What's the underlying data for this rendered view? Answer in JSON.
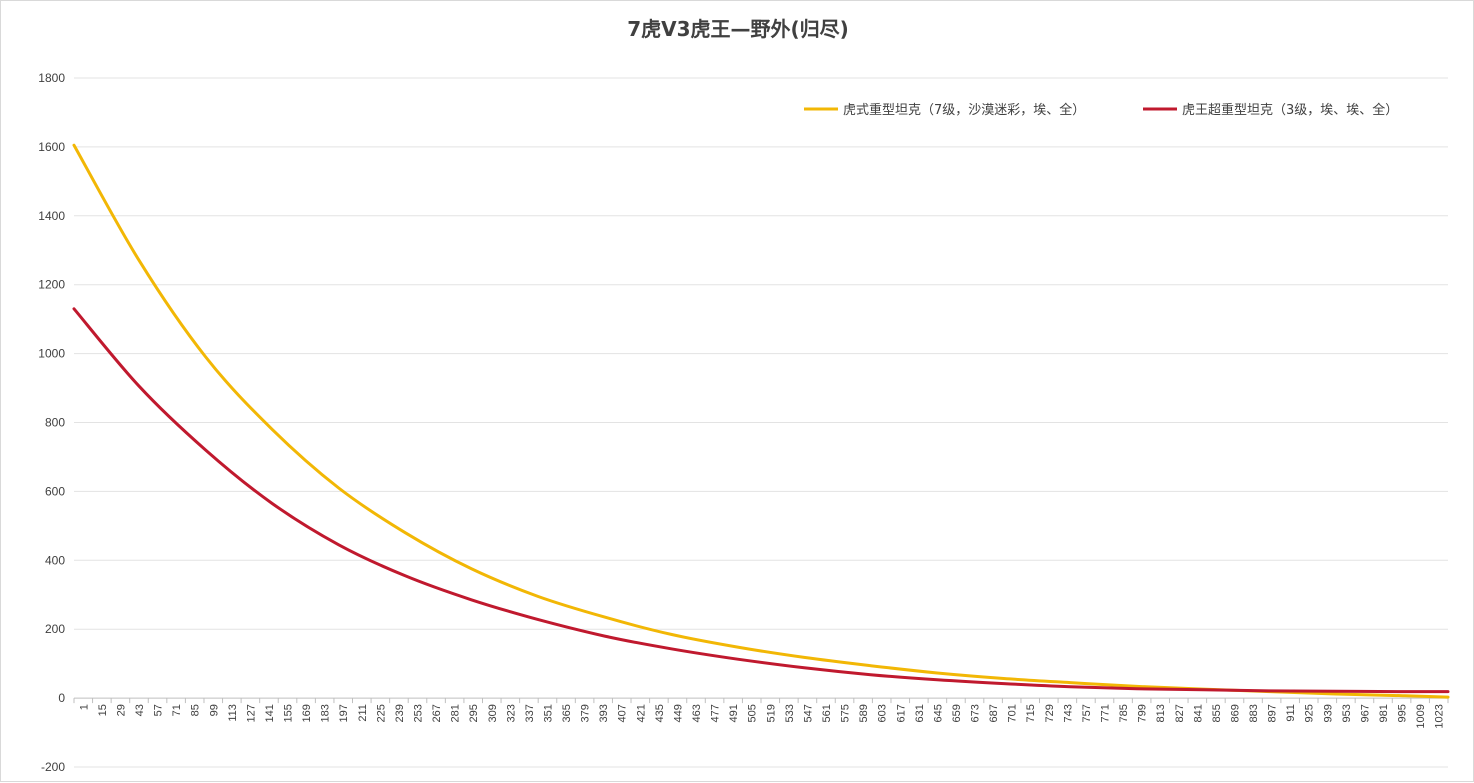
{
  "chart_data": {
    "type": "line",
    "title": "7虎V3虎王—野外(归尽)",
    "xlabel": "",
    "ylabel": "",
    "ylim": [
      -200,
      1800
    ],
    "y_ticks": [
      -200,
      0,
      200,
      400,
      600,
      800,
      1000,
      1200,
      1400,
      1600,
      1800
    ],
    "x_range": [
      1,
      1034
    ],
    "x_tick_labels": [
      "1",
      "15",
      "29",
      "43",
      "57",
      "71",
      "85",
      "99",
      "113",
      "127",
      "141",
      "155",
      "169",
      "183",
      "197",
      "211",
      "225",
      "239",
      "253",
      "267",
      "281",
      "295",
      "309",
      "323",
      "337",
      "351",
      "365",
      "379",
      "393",
      "407",
      "421",
      "435",
      "449",
      "463",
      "477",
      "491",
      "505",
      "519",
      "533",
      "547",
      "561",
      "575",
      "589",
      "603",
      "617",
      "631",
      "645",
      "659",
      "673",
      "687",
      "701",
      "715",
      "729",
      "743",
      "757",
      "771",
      "785",
      "799",
      "813",
      "827",
      "841",
      "855",
      "869",
      "883",
      "897",
      "911",
      "925",
      "939",
      "953",
      "967",
      "981",
      "995",
      "1009",
      "1023"
    ],
    "grid": true,
    "legend_position": "top-right",
    "series": [
      {
        "name": "虎式重型坦克（7级，沙漠迷彩，埃、全）",
        "color": "#F2B705",
        "x": [
          1,
          50,
          100,
          150,
          200,
          250,
          300,
          350,
          400,
          450,
          500,
          550,
          600,
          650,
          700,
          750,
          800,
          850,
          900,
          950,
          1000,
          1034
        ],
        "y": [
          1605,
          1270,
          990,
          780,
          610,
          480,
          375,
          295,
          235,
          185,
          148,
          118,
          94,
          73,
          57,
          45,
          34,
          26,
          19,
          12,
          7,
          3
        ]
      },
      {
        "name": "虎王超重型坦克（3级，埃、埃、全）",
        "color": "#C0192E",
        "x": [
          1,
          50,
          100,
          150,
          200,
          250,
          300,
          350,
          400,
          450,
          500,
          550,
          600,
          650,
          700,
          750,
          800,
          850,
          900,
          950,
          1000,
          1034
        ],
        "y": [
          1130,
          905,
          720,
          565,
          445,
          355,
          285,
          228,
          180,
          143,
          113,
          88,
          68,
          53,
          42,
          33,
          27,
          24,
          21,
          20,
          19,
          19
        ]
      }
    ]
  }
}
